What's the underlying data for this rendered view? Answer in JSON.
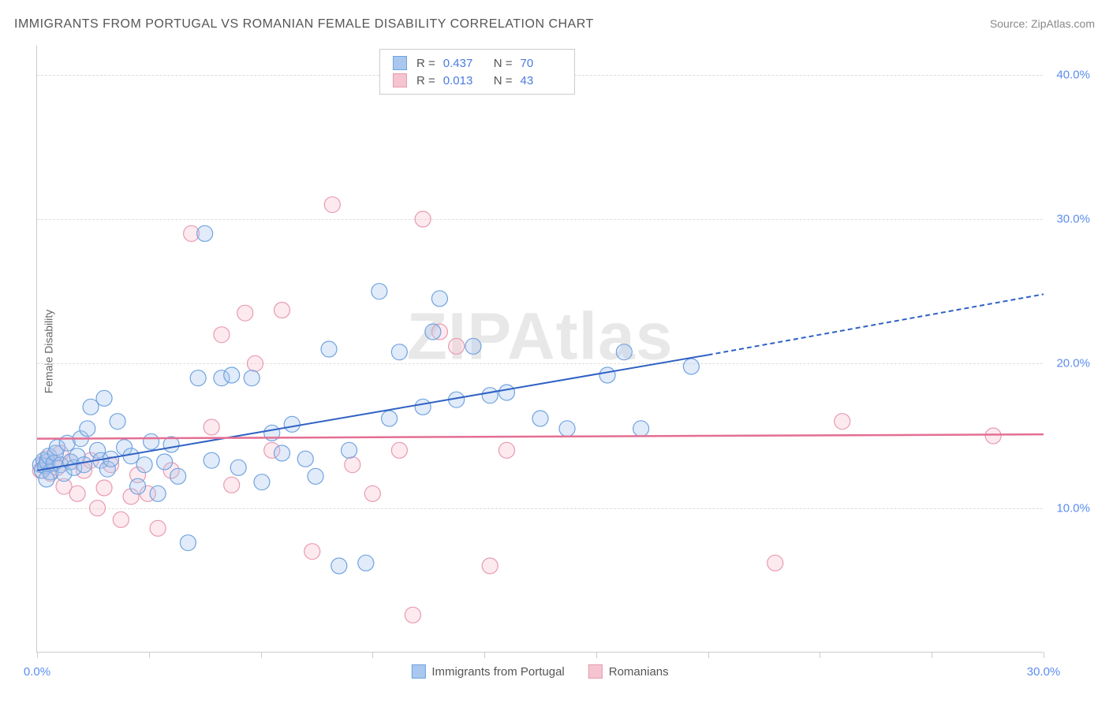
{
  "title": "IMMIGRANTS FROM PORTUGAL VS ROMANIAN FEMALE DISABILITY CORRELATION CHART",
  "source_label": "Source: ",
  "source_name": "ZipAtlas.com",
  "y_axis_label": "Female Disability",
  "watermark": "ZIPAtlas",
  "chart": {
    "type": "scatter",
    "xlim": [
      0,
      30
    ],
    "ylim": [
      0,
      42
    ],
    "x_ticks": [
      0,
      3.33,
      6.67,
      10,
      13.33,
      16.67,
      20,
      23.33,
      26.67,
      30
    ],
    "x_tick_labels_shown": {
      "0": "0.0%",
      "30": "30.0%"
    },
    "y_ticks": [
      10,
      20,
      30,
      40
    ],
    "y_tick_labels": [
      "10.0%",
      "20.0%",
      "30.0%",
      "40.0%"
    ],
    "grid_color": "#dddddd",
    "background_color": "#ffffff",
    "marker_radius": 10,
    "marker_fill_opacity": 0.35,
    "marker_stroke_width": 1.2,
    "series": [
      {
        "name": "Immigrants from Portugal",
        "color_fill": "#a9c7ef",
        "color_stroke": "#6fa3e0",
        "R": "0.437",
        "N": "70",
        "points": [
          [
            0.1,
            13.0
          ],
          [
            0.15,
            12.6
          ],
          [
            0.2,
            13.3
          ],
          [
            0.25,
            12.9
          ],
          [
            0.3,
            13.2
          ],
          [
            0.35,
            13.6
          ],
          [
            0.4,
            12.5
          ],
          [
            0.5,
            13.1
          ],
          [
            0.55,
            13.8
          ],
          [
            0.6,
            14.2
          ],
          [
            0.7,
            13.0
          ],
          [
            0.8,
            12.4
          ],
          [
            0.9,
            14.5
          ],
          [
            1.0,
            13.2
          ],
          [
            1.1,
            12.8
          ],
          [
            1.2,
            13.6
          ],
          [
            1.3,
            14.8
          ],
          [
            1.4,
            13.0
          ],
          [
            1.5,
            15.5
          ],
          [
            1.6,
            17.0
          ],
          [
            1.8,
            14.0
          ],
          [
            1.9,
            13.3
          ],
          [
            2.0,
            17.6
          ],
          [
            2.1,
            12.7
          ],
          [
            2.2,
            13.4
          ],
          [
            2.4,
            16.0
          ],
          [
            2.6,
            14.2
          ],
          [
            2.8,
            13.6
          ],
          [
            3.0,
            11.5
          ],
          [
            3.2,
            13.0
          ],
          [
            3.4,
            14.6
          ],
          [
            3.6,
            11.0
          ],
          [
            3.8,
            13.2
          ],
          [
            4.0,
            14.4
          ],
          [
            4.2,
            12.2
          ],
          [
            4.5,
            7.6
          ],
          [
            4.8,
            19.0
          ],
          [
            5.0,
            29.0
          ],
          [
            5.2,
            13.3
          ],
          [
            5.5,
            19.0
          ],
          [
            5.8,
            19.2
          ],
          [
            6.0,
            12.8
          ],
          [
            6.4,
            19.0
          ],
          [
            6.7,
            11.8
          ],
          [
            7.0,
            15.2
          ],
          [
            7.3,
            13.8
          ],
          [
            7.6,
            15.8
          ],
          [
            8.0,
            13.4
          ],
          [
            8.3,
            12.2
          ],
          [
            8.7,
            21.0
          ],
          [
            9.0,
            6.0
          ],
          [
            9.3,
            14.0
          ],
          [
            9.8,
            6.2
          ],
          [
            10.2,
            25.0
          ],
          [
            10.5,
            16.2
          ],
          [
            10.8,
            20.8
          ],
          [
            11.5,
            17.0
          ],
          [
            11.8,
            22.2
          ],
          [
            12.5,
            17.5
          ],
          [
            13.0,
            21.2
          ],
          [
            13.5,
            17.8
          ],
          [
            14.0,
            18.0
          ],
          [
            15.0,
            16.2
          ],
          [
            15.8,
            15.5
          ],
          [
            17.0,
            19.2
          ],
          [
            17.5,
            20.8
          ],
          [
            18.0,
            15.5
          ],
          [
            19.5,
            19.8
          ],
          [
            12.0,
            24.5
          ],
          [
            0.28,
            12.0
          ]
        ],
        "trend": {
          "x1": 0,
          "y1": 12.6,
          "x2": 20,
          "y2": 20.6,
          "x2_ext": 30,
          "y2_ext": 24.8,
          "color": "#2f61c4",
          "width": 2,
          "dash_ext": "6,4"
        }
      },
      {
        "name": "Romanians",
        "color_fill": "#f5c4d0",
        "color_stroke": "#e89ab0",
        "R": "0.013",
        "N": "43",
        "points": [
          [
            0.1,
            12.6
          ],
          [
            0.2,
            13.0
          ],
          [
            0.3,
            13.4
          ],
          [
            0.4,
            12.4
          ],
          [
            0.5,
            13.1
          ],
          [
            0.6,
            12.8
          ],
          [
            0.8,
            11.5
          ],
          [
            1.0,
            13.2
          ],
          [
            1.2,
            11.0
          ],
          [
            1.4,
            12.6
          ],
          [
            1.6,
            13.3
          ],
          [
            1.8,
            10.0
          ],
          [
            2.0,
            11.4
          ],
          [
            2.2,
            13.0
          ],
          [
            2.5,
            9.2
          ],
          [
            2.8,
            10.8
          ],
          [
            3.0,
            12.3
          ],
          [
            3.3,
            11.0
          ],
          [
            3.6,
            8.6
          ],
          [
            4.0,
            12.6
          ],
          [
            4.6,
            29.0
          ],
          [
            5.2,
            15.6
          ],
          [
            5.5,
            22.0
          ],
          [
            5.8,
            11.6
          ],
          [
            6.2,
            23.5
          ],
          [
            6.5,
            20.0
          ],
          [
            7.0,
            14.0
          ],
          [
            7.3,
            23.7
          ],
          [
            8.2,
            7.0
          ],
          [
            8.8,
            31.0
          ],
          [
            9.4,
            13.0
          ],
          [
            10.0,
            11.0
          ],
          [
            10.8,
            14.0
          ],
          [
            11.2,
            2.6
          ],
          [
            11.5,
            30.0
          ],
          [
            12.0,
            22.2
          ],
          [
            12.5,
            21.2
          ],
          [
            13.5,
            6.0
          ],
          [
            14.0,
            14.0
          ],
          [
            22.0,
            6.2
          ],
          [
            24.0,
            16.0
          ],
          [
            28.5,
            15.0
          ],
          [
            0.7,
            13.8
          ]
        ],
        "trend": {
          "x1": 0,
          "y1": 14.8,
          "x2": 30,
          "y2": 15.1,
          "color": "#e46f93",
          "width": 2.5
        }
      }
    ]
  },
  "legend_top_labels": {
    "R": "R =",
    "N": "N ="
  },
  "legend_bottom": [
    "Immigrants from Portugal",
    "Romanians"
  ]
}
